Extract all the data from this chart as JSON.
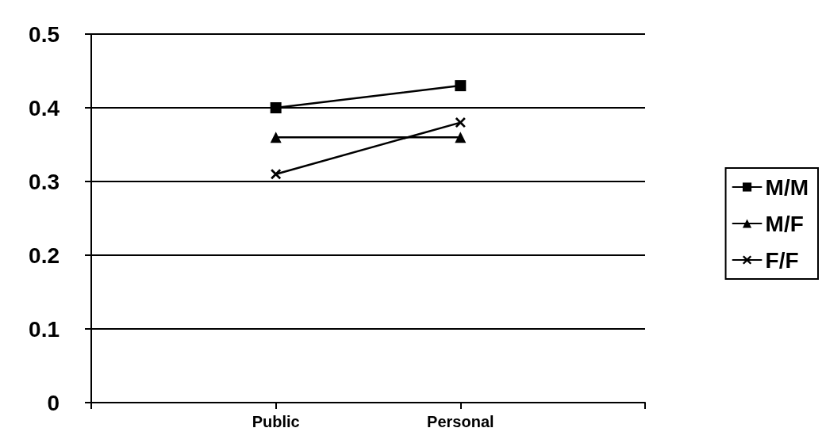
{
  "chart_data": {
    "type": "line",
    "categories": [
      null,
      "Public",
      "Personal",
      null
    ],
    "series": [
      {
        "name": "M/M",
        "color": "#000000",
        "marker": "square",
        "values": [
          null,
          0.4,
          0.43,
          null
        ]
      },
      {
        "name": "M/F",
        "color": "#000000",
        "marker": "triangle",
        "values": [
          null,
          0.36,
          0.36,
          null
        ]
      },
      {
        "name": "F/F",
        "color": "#000000",
        "marker": "cross",
        "values": [
          null,
          0.31,
          0.38,
          null
        ]
      }
    ],
    "ylim": [
      0,
      0.5
    ],
    "yticks": [
      0,
      0.1,
      0.2,
      0.3,
      0.4,
      0.5
    ],
    "grid": "y",
    "legend": "right",
    "line_style": "solid"
  }
}
